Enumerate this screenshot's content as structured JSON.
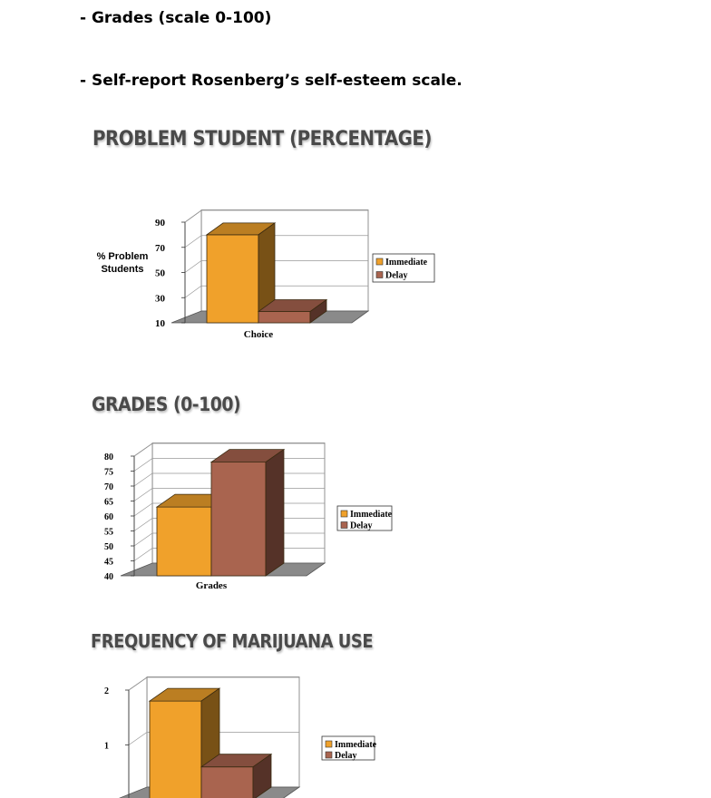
{
  "bullets": [
    "- Grades (scale 0-100)",
    "- Self-report Rosenberg’s self-esteem scale."
  ],
  "colors": {
    "immediate": "#f0a12b",
    "delay": "#a9644f",
    "floor": "#8a8a8a"
  },
  "chart_data": [
    {
      "type": "bar",
      "title": "PROBLEM STUDENT (PERCENTAGE)",
      "ylabel": "% Problem\nStudents",
      "xlabel": "Choice",
      "categories": [
        "Choice"
      ],
      "series": [
        {
          "name": "Immediate",
          "values": [
            80
          ]
        },
        {
          "name": "Delay",
          "values": [
            19
          ]
        }
      ],
      "yticks": [
        10,
        30,
        50,
        70,
        90
      ],
      "ylim": [
        10,
        90
      ],
      "legend": "right",
      "grid": true
    },
    {
      "type": "bar",
      "title": "GRADES (0-100)",
      "ylabel": "",
      "xlabel": "Grades",
      "categories": [
        "Grades"
      ],
      "series": [
        {
          "name": "Immediate",
          "values": [
            63
          ]
        },
        {
          "name": "Delay",
          "values": [
            78
          ]
        }
      ],
      "yticks": [
        40,
        45,
        50,
        55,
        60,
        65,
        70,
        75,
        80
      ],
      "ylim": [
        40,
        80
      ],
      "legend": "right",
      "grid": true
    },
    {
      "type": "bar",
      "title": "FREQUENCY OF MARIJUANA USE",
      "ylabel": "",
      "xlabel": "",
      "categories": [
        ""
      ],
      "series": [
        {
          "name": "Immediate",
          "values": [
            1.8
          ]
        },
        {
          "name": "Delay",
          "values": [
            0.6
          ]
        }
      ],
      "yticks": [
        1,
        2
      ],
      "ylim": [
        0,
        2
      ],
      "legend": "right",
      "grid": true
    }
  ]
}
